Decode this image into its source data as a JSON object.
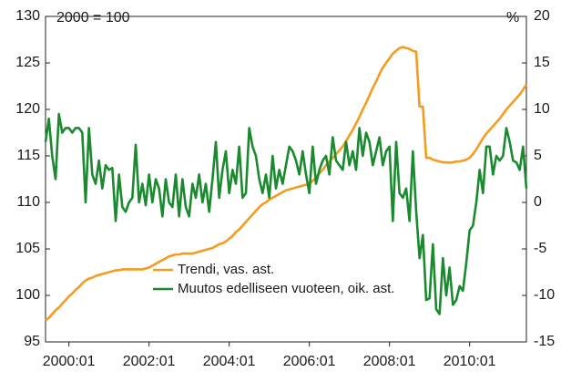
{
  "chart_data": {
    "type": "line",
    "annotations": [
      "2000 = 100",
      "%"
    ],
    "x": [
      0,
      1,
      2,
      3,
      4,
      5,
      6,
      7,
      8,
      9,
      10,
      11,
      12,
      13,
      14,
      15,
      16,
      17,
      18,
      19,
      20,
      21,
      22,
      23,
      24,
      25,
      26,
      27,
      28,
      29,
      30,
      31,
      32,
      33,
      34,
      35,
      36,
      37,
      38,
      39,
      40,
      41,
      42,
      43,
      44,
      45,
      46,
      47,
      48,
      49,
      50,
      51,
      52,
      53,
      54,
      55,
      56,
      57,
      58,
      59,
      60,
      61,
      62,
      63,
      64,
      65,
      66,
      67,
      68,
      69,
      70,
      71,
      72,
      73,
      74,
      75,
      76,
      77,
      78,
      79,
      80,
      81,
      82,
      83,
      84,
      85,
      86,
      87,
      88,
      89,
      90,
      91,
      92,
      93,
      94,
      95,
      96,
      97,
      98,
      99,
      100,
      101,
      102,
      103,
      104,
      105,
      106,
      107,
      108,
      109,
      110,
      111,
      112,
      113,
      114,
      115,
      116,
      117,
      118,
      119,
      120,
      121,
      122,
      123,
      124,
      125,
      126,
      127,
      128,
      129,
      130,
      131,
      132,
      133,
      134,
      135,
      136,
      137,
      138,
      139,
      140,
      141,
      142,
      143,
      144
    ],
    "xlim": [
      0,
      144
    ],
    "xticks": [
      {
        "value": 7,
        "label": "2000:01"
      },
      {
        "value": 31,
        "label": "2002:01"
      },
      {
        "value": 55,
        "label": "2004:01"
      },
      {
        "value": 79,
        "label": "2006:01"
      },
      {
        "value": 103,
        "label": "2008:01"
      },
      {
        "value": 127,
        "label": "2010:01"
      }
    ],
    "ylim": [
      95,
      130
    ],
    "yticks": [
      95,
      100,
      105,
      110,
      115,
      120,
      125,
      130
    ],
    "y2lim": [
      -15,
      20
    ],
    "y2ticks": [
      -15,
      -10,
      -5,
      0,
      5,
      10,
      15,
      20
    ],
    "legend": "lower center",
    "series": [
      {
        "name": "Trendi, vas. ast.",
        "color": "#f39c1f",
        "axis": "y",
        "values": [
          97.3,
          97.6,
          98,
          98.4,
          98.7,
          99.1,
          99.5,
          99.9,
          100.2,
          100.6,
          100.9,
          101.3,
          101.6,
          101.8,
          101.9,
          102.1,
          102.2,
          102.3,
          102.4,
          102.5,
          102.6,
          102.7,
          102.7,
          102.8,
          102.8,
          102.8,
          102.8,
          102.8,
          102.8,
          102.8,
          102.9,
          103,
          103.2,
          103.4,
          103.6,
          103.8,
          104,
          104.2,
          104.3,
          104.4,
          104.4,
          104.5,
          104.5,
          104.5,
          104.5,
          104.6,
          104.7,
          104.8,
          104.9,
          105,
          105.1,
          105.3,
          105.5,
          105.6,
          105.8,
          106.1,
          106.4,
          106.8,
          107.1,
          107.5,
          107.9,
          108.3,
          108.7,
          109.1,
          109.5,
          109.8,
          110,
          110.3,
          110.5,
          110.7,
          110.9,
          111.1,
          111.3,
          111.4,
          111.5,
          111.6,
          111.7,
          111.8,
          111.9,
          112,
          112.3,
          112.7,
          113.1,
          113.5,
          114,
          114.4,
          114.8,
          115.2,
          115.6,
          116,
          116.6,
          117.2,
          117.8,
          118.5,
          119.2,
          120,
          120.7,
          121.5,
          122.3,
          123,
          123.8,
          124.5,
          125,
          125.5,
          126,
          126.3,
          126.6,
          126.7,
          126.6,
          126.5,
          126.3,
          126.2,
          120.3,
          120.3,
          114.8,
          114.8,
          114.6,
          114.5,
          114.4,
          114.3,
          114.3,
          114.3,
          114.3,
          114.4,
          114.4,
          114.5,
          114.6,
          114.8,
          115.2,
          115.7,
          116.3,
          116.9,
          117.4,
          117.8,
          118.2,
          118.6,
          119,
          119.5,
          120,
          120.4,
          120.8,
          121.2,
          121.6,
          122.1,
          122.7
        ]
      },
      {
        "name": "Muutos edelliseen vuoteen, oik. ast.",
        "color": "#1a8a2e",
        "axis": "y2",
        "values": [
          6.5,
          9,
          5,
          2.5,
          9.5,
          7.5,
          8,
          8,
          7.5,
          8,
          8,
          7.5,
          0,
          8,
          3,
          2,
          4.5,
          1.5,
          4,
          3.5,
          3.7,
          -2,
          3,
          -0.5,
          -1,
          0,
          0.5,
          6.2,
          0,
          2,
          -0.3,
          3,
          0,
          2.5,
          1.5,
          -1.5,
          2.5,
          0,
          -0.5,
          3,
          -1.5,
          2.5,
          -0.5,
          -1.5,
          2,
          0.5,
          3,
          0,
          2,
          -1,
          2.5,
          6.5,
          0.5,
          3.5,
          5.5,
          1,
          3.5,
          2,
          6,
          0.5,
          1,
          8,
          6,
          5,
          2.5,
          1,
          3,
          0.5,
          5,
          1.5,
          3.5,
          2,
          4,
          6,
          5.5,
          4.5,
          3,
          5.5,
          3,
          1,
          6,
          2,
          3.5,
          4.5,
          5,
          3,
          7,
          4.5,
          4,
          3.5,
          6.5,
          4,
          5.5,
          3.5,
          8,
          5,
          7.5,
          6.5,
          4,
          5.5,
          7,
          4,
          5.5,
          6,
          -2,
          6.5,
          1,
          0.5,
          1.5,
          -2,
          5.5,
          -1,
          -6,
          -3.5,
          -10.5,
          -10.3,
          -4.5,
          -11.5,
          -12,
          -6,
          -10,
          -7,
          -11,
          -10.5,
          -9,
          -9.5,
          -6.5,
          -3,
          -2.5,
          0,
          3.5,
          1,
          6,
          6,
          3,
          5,
          4.5,
          5,
          8,
          6.5,
          4.5,
          4.3,
          3.5,
          6,
          1.5
        ]
      }
    ]
  }
}
